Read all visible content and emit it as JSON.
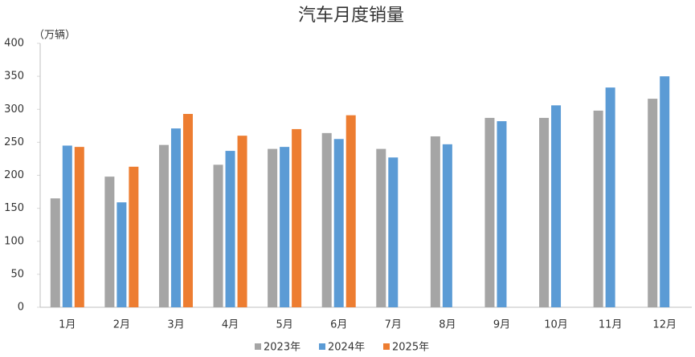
{
  "chart_data": {
    "type": "bar",
    "title": "汽车月度销量",
    "y_label": "（万辆）",
    "categories": [
      "1月",
      "2月",
      "3月",
      "4月",
      "5月",
      "6月",
      "7月",
      "8月",
      "9月",
      "10月",
      "11月",
      "12月"
    ],
    "series": [
      {
        "name": "2023年",
        "color": "#a5a5a5",
        "values": [
          165,
          198,
          246,
          216,
          240,
          264,
          240,
          259,
          287,
          287,
          298,
          316
        ]
      },
      {
        "name": "2024年",
        "color": "#5b9bd5",
        "values": [
          245,
          159,
          271,
          237,
          243,
          255,
          227,
          247,
          282,
          306,
          333,
          350
        ]
      },
      {
        "name": "2025年",
        "color": "#ed7d31",
        "values": [
          243,
          213,
          293,
          260,
          270,
          291,
          null,
          null,
          null,
          null,
          null,
          null
        ]
      }
    ],
    "ylim": [
      0,
      400
    ],
    "yticks": [
      0,
      50,
      100,
      150,
      200,
      250,
      300,
      350,
      400
    ],
    "grid": false,
    "legend": "bottom"
  }
}
